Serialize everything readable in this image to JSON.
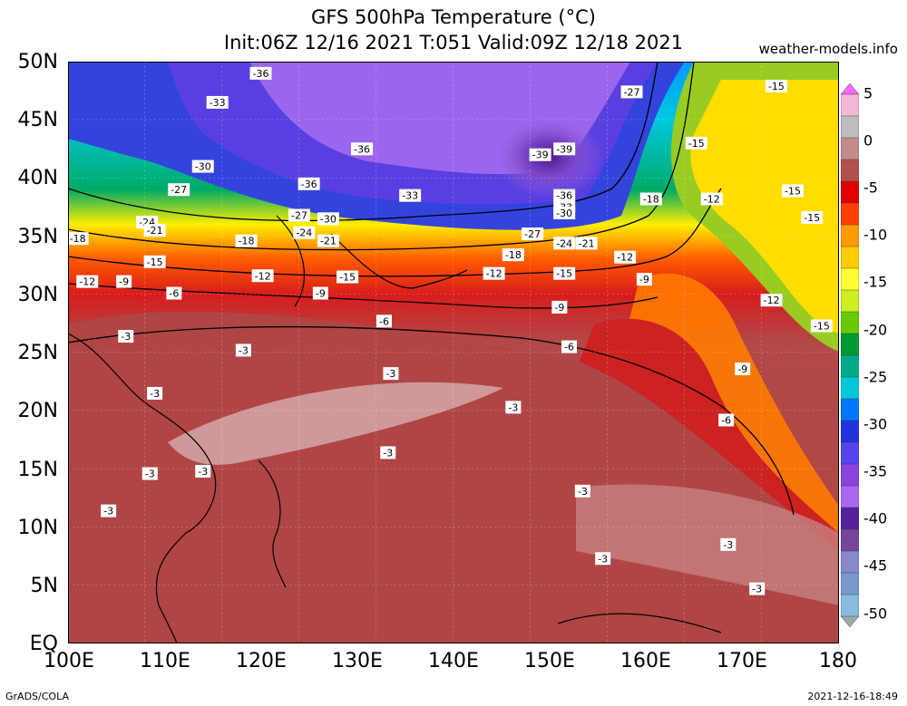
{
  "header": {
    "title_line1": "GFS 500hPa Temperature (°C)",
    "title_line2": "Init:06Z 12/16 2021 T:051 Valid:09Z 12/18 2021",
    "credit": "weather-models.info"
  },
  "map": {
    "lat_labels": [
      "50N",
      "45N",
      "40N",
      "35N",
      "30N",
      "25N",
      "20N",
      "15N",
      "10N",
      "5N",
      "EQ"
    ],
    "lon_labels": [
      "100E",
      "110E",
      "120E",
      "130E",
      "140E",
      "150E",
      "160E",
      "170E",
      "180"
    ],
    "contour_labels": [
      {
        "text": "-36",
        "lon": 120,
        "lat": 49
      },
      {
        "text": "-33",
        "lon": 115.5,
        "lat": 46.5
      },
      {
        "text": "-36",
        "lon": 130.5,
        "lat": 42.5
      },
      {
        "text": "-36",
        "lon": 125,
        "lat": 39.5
      },
      {
        "text": "-39",
        "lon": 149,
        "lat": 42
      },
      {
        "text": "-39",
        "lon": 151.5,
        "lat": 42.5
      },
      {
        "text": "-36",
        "lon": 151.5,
        "lat": 38.5
      },
      {
        "text": "-33",
        "lon": 151.5,
        "lat": 37.5
      },
      {
        "text": "-30",
        "lon": 151.5,
        "lat": 37
      },
      {
        "text": "-30",
        "lon": 114,
        "lat": 41
      },
      {
        "text": "-27",
        "lon": 111.5,
        "lat": 39
      },
      {
        "text": "-24",
        "lon": 108.2,
        "lat": 36.2
      },
      {
        "text": "-21",
        "lon": 109,
        "lat": 35.5
      },
      {
        "text": "-18",
        "lon": 101,
        "lat": 34.8
      },
      {
        "text": "-15",
        "lon": 109,
        "lat": 32.8
      },
      {
        "text": "-12",
        "lon": 102,
        "lat": 31.1
      },
      {
        "text": "-9",
        "lon": 105.8,
        "lat": 31.1
      },
      {
        "text": "-6",
        "lon": 111,
        "lat": 30.1
      },
      {
        "text": "-27",
        "lon": 124,
        "lat": 36.8
      },
      {
        "text": "-30",
        "lon": 127,
        "lat": 36.5
      },
      {
        "text": "-24",
        "lon": 124.5,
        "lat": 35.3
      },
      {
        "text": "-21",
        "lon": 127,
        "lat": 34.6
      },
      {
        "text": "-18",
        "lon": 118.5,
        "lat": 34.6
      },
      {
        "text": "-12",
        "lon": 120.2,
        "lat": 31.6
      },
      {
        "text": "-9",
        "lon": 126.2,
        "lat": 30.1
      },
      {
        "text": "-15",
        "lon": 129,
        "lat": 31.5
      },
      {
        "text": "-33",
        "lon": 135.5,
        "lat": 38.5
      },
      {
        "text": "-27",
        "lon": 148.2,
        "lat": 35.2
      },
      {
        "text": "-24",
        "lon": 151.5,
        "lat": 34.4
      },
      {
        "text": "-21",
        "lon": 153.8,
        "lat": 34.4
      },
      {
        "text": "-18",
        "lon": 146.2,
        "lat": 33.4
      },
      {
        "text": "-12",
        "lon": 144.2,
        "lat": 31.8
      },
      {
        "text": "-15",
        "lon": 151.5,
        "lat": 31.8
      },
      {
        "text": "-12",
        "lon": 157.8,
        "lat": 33.2
      },
      {
        "text": "-9",
        "lon": 159.8,
        "lat": 31.3
      },
      {
        "text": "-9",
        "lon": 151,
        "lat": 28.9
      },
      {
        "text": "-6",
        "lon": 132.8,
        "lat": 27.7
      },
      {
        "text": "-6",
        "lon": 152,
        "lat": 25.5
      },
      {
        "text": "-27",
        "lon": 158.5,
        "lat": 47.4
      },
      {
        "text": "-15",
        "lon": 173.5,
        "lat": 47.9
      },
      {
        "text": "-15",
        "lon": 165.2,
        "lat": 43
      },
      {
        "text": "-18",
        "lon": 160.5,
        "lat": 38.2
      },
      {
        "text": "-12",
        "lon": 166.8,
        "lat": 38.2
      },
      {
        "text": "-15",
        "lon": 175.2,
        "lat": 38.9
      },
      {
        "text": "-15",
        "lon": 177.2,
        "lat": 36.6
      },
      {
        "text": "-12",
        "lon": 173,
        "lat": 29.5
      },
      {
        "text": "-15",
        "lon": 178.2,
        "lat": 27.3
      },
      {
        "text": "-9",
        "lon": 170,
        "lat": 23.6
      },
      {
        "text": "-6",
        "lon": 168.3,
        "lat": 19.2
      },
      {
        "text": "-3",
        "lon": 106,
        "lat": 26.4
      },
      {
        "text": "-3",
        "lon": 118.2,
        "lat": 25.2
      },
      {
        "text": "-3",
        "lon": 109,
        "lat": 21.5
      },
      {
        "text": "-3",
        "lon": 133.5,
        "lat": 23.2
      },
      {
        "text": "-3",
        "lon": 146.2,
        "lat": 20.3
      },
      {
        "text": "-3",
        "lon": 133.2,
        "lat": 16.4
      },
      {
        "text": "-3",
        "lon": 108.5,
        "lat": 14.6
      },
      {
        "text": "-3",
        "lon": 114,
        "lat": 14.8
      },
      {
        "text": "-3",
        "lon": 104.2,
        "lat": 11.4
      },
      {
        "text": "-3",
        "lon": 153.4,
        "lat": 13.1
      },
      {
        "text": "-3",
        "lon": 155.5,
        "lat": 7.3
      },
      {
        "text": "-3",
        "lon": 168.5,
        "lat": 8.5
      },
      {
        "text": "-3",
        "lon": 171.5,
        "lat": 4.7
      }
    ]
  },
  "colorbar": {
    "tick_labels": [
      "5",
      "0",
      "-5",
      "-10",
      "-15",
      "-20",
      "-25",
      "-30",
      "-35",
      "-40",
      "-45",
      "-50"
    ],
    "colors": [
      "#ff66ff",
      "#f2b8d4",
      "#bdbdbd",
      "#c48b8b",
      "#b25050",
      "#e00000",
      "#ff4000",
      "#ff9900",
      "#ffcc00",
      "#ffff33",
      "#ccee22",
      "#66cc00",
      "#009933",
      "#00aa88",
      "#00c8d8",
      "#0077ff",
      "#2233dd",
      "#5544ee",
      "#8844dd",
      "#aa66ee",
      "#552299",
      "#774499",
      "#8888cc",
      "#7799cc",
      "#88bbdd",
      "#99aaaa"
    ]
  },
  "footer": {
    "left": "GrADS/COLA",
    "right": "2021-12-16-18:49"
  }
}
